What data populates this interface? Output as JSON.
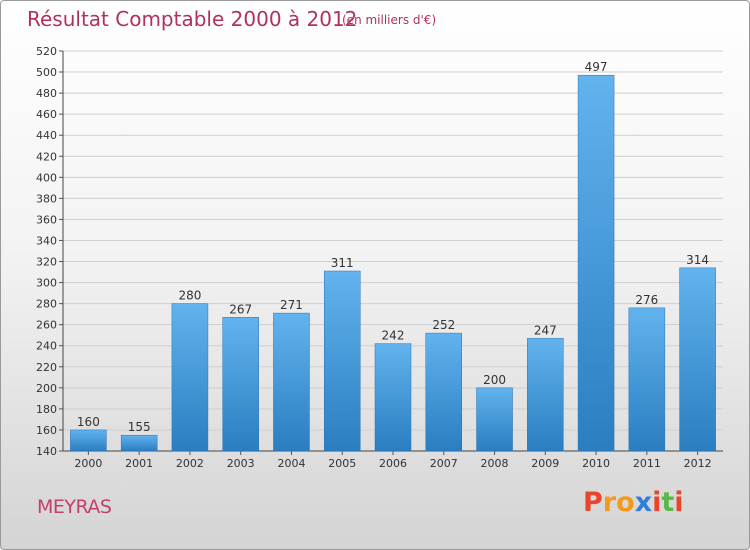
{
  "chart_data": {
    "type": "bar",
    "title": "Résultat Comptable 2000 à 2012",
    "subtitle": "(en milliers d'€)",
    "categories": [
      "2000",
      "2001",
      "2002",
      "2003",
      "2004",
      "2005",
      "2006",
      "2007",
      "2008",
      "2009",
      "2010",
      "2011",
      "2012"
    ],
    "values": [
      160,
      155,
      280,
      267,
      271,
      311,
      242,
      252,
      200,
      247,
      497,
      276,
      314
    ],
    "xlabel": "",
    "ylabel": "",
    "ylim": [
      140,
      520
    ],
    "yticks": [
      140,
      160,
      180,
      200,
      220,
      240,
      260,
      280,
      300,
      320,
      340,
      360,
      380,
      400,
      420,
      440,
      460,
      480,
      500,
      520
    ],
    "grid": true,
    "bar_color": "#4a9ede"
  },
  "footer": {
    "commune": "MEYRAS",
    "logo_text": "Proxiti"
  },
  "colors": {
    "title": "#b0325a",
    "logo": [
      "#e8452c",
      "#f39a1e",
      "#f39a1e",
      "#2f7fd6",
      "#e8452c",
      "#57b947",
      "#e8452c"
    ]
  }
}
